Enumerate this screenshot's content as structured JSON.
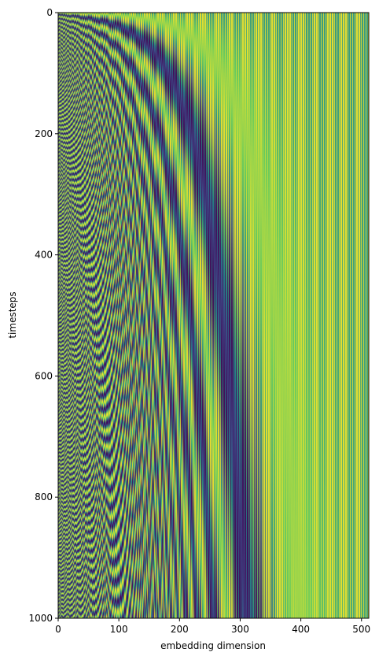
{
  "chart_data": {
    "type": "heatmap",
    "title": "",
    "xlabel": "embedding dimension",
    "ylabel": "timesteps",
    "x_range": [
      0,
      512
    ],
    "y_range": [
      0,
      1000
    ],
    "y_axis_direction": "top-to-bottom",
    "x_ticks": [
      0,
      100,
      200,
      300,
      400,
      500
    ],
    "y_ticks": [
      0,
      200,
      400,
      600,
      800,
      1000
    ],
    "x_tick_labels": [
      "0",
      "100",
      "200",
      "300",
      "400",
      "500"
    ],
    "y_tick_labels": [
      "0",
      "200",
      "400",
      "600",
      "800",
      "1000"
    ],
    "colormap": "viridis",
    "value_range": [
      -1,
      1
    ],
    "colormap_stops": [
      "#440154",
      "#3b528b",
      "#21918c",
      "#5ec962",
      "#fde725"
    ],
    "grid": false,
    "legend": "none",
    "pattern": "sinusoidal positional encoding: even dims sin, odd dims cos of timestep / 10000^(dim/512)"
  }
}
